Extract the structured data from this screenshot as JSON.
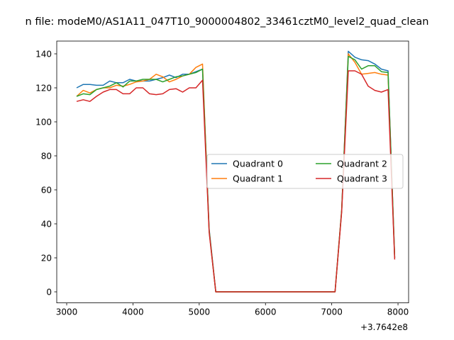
{
  "chart_data": {
    "type": "line",
    "title": "n file: modeM0/AS1A11_047T10_9000004802_33461cztM0_level2_quad_clean",
    "offset_label": "+3.7642e8",
    "xlim": [
      2850,
      8160
    ],
    "ylim": [
      -6.5,
      147.5
    ],
    "xticks": [
      3000,
      4000,
      5000,
      6000,
      7000,
      8000
    ],
    "yticks": [
      0,
      20,
      40,
      60,
      80,
      100,
      120,
      140
    ],
    "legend": {
      "placement": "center-right",
      "columns": 2
    },
    "series": [
      {
        "name": "Quadrant 0",
        "color": "#1f77b4",
        "points": [
          [
            3150,
            120
          ],
          [
            3250,
            122
          ],
          [
            3350,
            122
          ],
          [
            3450,
            121.5
          ],
          [
            3550,
            121.5
          ],
          [
            3650,
            124
          ],
          [
            3750,
            123
          ],
          [
            3850,
            123
          ],
          [
            3950,
            125
          ],
          [
            4050,
            124
          ],
          [
            4150,
            124
          ],
          [
            4250,
            124
          ],
          [
            4350,
            125
          ],
          [
            4450,
            126
          ],
          [
            4550,
            127.5
          ],
          [
            4650,
            126
          ],
          [
            4750,
            128
          ],
          [
            4850,
            128
          ],
          [
            4950,
            129.5
          ],
          [
            5050,
            131
          ],
          [
            5150,
            37
          ],
          [
            5250,
            0
          ],
          [
            7050,
            0
          ],
          [
            7150,
            48
          ],
          [
            7250,
            141.5
          ],
          [
            7350,
            138
          ],
          [
            7450,
            136.5
          ],
          [
            7550,
            136
          ],
          [
            7650,
            134
          ],
          [
            7750,
            131
          ],
          [
            7850,
            130
          ],
          [
            7950,
            20
          ]
        ]
      },
      {
        "name": "Quadrant 1",
        "color": "#ff7f0e",
        "points": [
          [
            3150,
            115
          ],
          [
            3250,
            118.5
          ],
          [
            3350,
            117
          ],
          [
            3450,
            119
          ],
          [
            3550,
            120
          ],
          [
            3650,
            120
          ],
          [
            3750,
            121.5
          ],
          [
            3850,
            121
          ],
          [
            3950,
            122
          ],
          [
            4050,
            123.5
          ],
          [
            4150,
            124
          ],
          [
            4250,
            125
          ],
          [
            4350,
            128
          ],
          [
            4450,
            126.5
          ],
          [
            4550,
            123.5
          ],
          [
            4650,
            125
          ],
          [
            4750,
            127
          ],
          [
            4850,
            128
          ],
          [
            4950,
            132
          ],
          [
            5050,
            134
          ],
          [
            5150,
            36
          ],
          [
            5250,
            0
          ],
          [
            7050,
            0
          ],
          [
            7150,
            48
          ],
          [
            7250,
            140
          ],
          [
            7350,
            135
          ],
          [
            7450,
            128
          ],
          [
            7550,
            128.5
          ],
          [
            7650,
            129
          ],
          [
            7750,
            128
          ],
          [
            7850,
            127.5
          ],
          [
            7950,
            20
          ]
        ]
      },
      {
        "name": "Quadrant 2",
        "color": "#2ca02c",
        "points": [
          [
            3150,
            115
          ],
          [
            3250,
            116.5
          ],
          [
            3350,
            116
          ],
          [
            3450,
            119
          ],
          [
            3550,
            120
          ],
          [
            3650,
            121
          ],
          [
            3750,
            123
          ],
          [
            3850,
            120.5
          ],
          [
            3950,
            124
          ],
          [
            4050,
            124
          ],
          [
            4150,
            125
          ],
          [
            4250,
            125
          ],
          [
            4350,
            125
          ],
          [
            4450,
            123.5
          ],
          [
            4550,
            125
          ],
          [
            4650,
            126.5
          ],
          [
            4750,
            127
          ],
          [
            4850,
            128
          ],
          [
            4950,
            129
          ],
          [
            5050,
            131
          ],
          [
            5150,
            36
          ],
          [
            5250,
            0
          ],
          [
            7050,
            0
          ],
          [
            7150,
            48
          ],
          [
            7250,
            138.5
          ],
          [
            7350,
            136.5
          ],
          [
            7450,
            131
          ],
          [
            7550,
            133
          ],
          [
            7650,
            133
          ],
          [
            7750,
            129.5
          ],
          [
            7850,
            129
          ],
          [
            7950,
            20
          ]
        ]
      },
      {
        "name": "Quadrant 3",
        "color": "#d62728",
        "points": [
          [
            3150,
            112
          ],
          [
            3250,
            113
          ],
          [
            3350,
            112
          ],
          [
            3450,
            115
          ],
          [
            3550,
            117.5
          ],
          [
            3650,
            119
          ],
          [
            3750,
            119
          ],
          [
            3850,
            116.5
          ],
          [
            3950,
            116.5
          ],
          [
            4050,
            120
          ],
          [
            4150,
            120
          ],
          [
            4250,
            116.5
          ],
          [
            4350,
            116
          ],
          [
            4450,
            116.5
          ],
          [
            4550,
            119
          ],
          [
            4650,
            119.5
          ],
          [
            4750,
            117.5
          ],
          [
            4850,
            120
          ],
          [
            4950,
            120
          ],
          [
            5050,
            124.5
          ],
          [
            5150,
            35
          ],
          [
            5250,
            0
          ],
          [
            7050,
            0
          ],
          [
            7150,
            47
          ],
          [
            7250,
            130
          ],
          [
            7350,
            130
          ],
          [
            7450,
            128
          ],
          [
            7550,
            121
          ],
          [
            7650,
            118.5
          ],
          [
            7750,
            117.5
          ],
          [
            7850,
            119
          ],
          [
            7950,
            19
          ]
        ]
      }
    ]
  }
}
